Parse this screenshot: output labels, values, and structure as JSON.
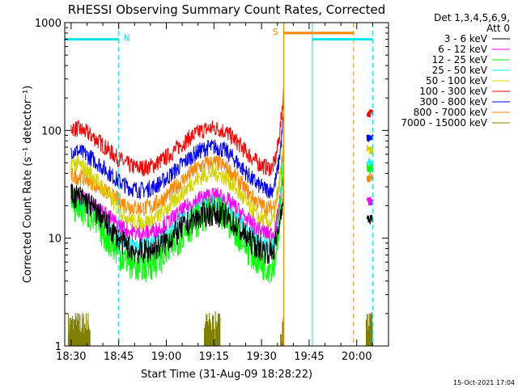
{
  "chart_data": {
    "type": "line",
    "title": "RHESSI Observing Summary Count Rates, Corrected",
    "xlabel": "Start Time (31-Aug-09 18:28:22)",
    "ylabel": "Corrected Count Rate (s⁻¹ detector⁻¹)",
    "yscale": "log",
    "ylim": [
      1,
      1000
    ],
    "xlim": [
      "18:28",
      "20:10"
    ],
    "x_ticks": [
      "18:30",
      "18:45",
      "19:00",
      "19:15",
      "19:30",
      "19:45",
      "20:00"
    ],
    "y_ticks": [
      "1",
      "10",
      "100",
      "1000"
    ],
    "legend_header": [
      "Det 1,3,4,5,6,9,",
      "Att 0"
    ],
    "legend_position": "right",
    "footer_date": "15-Oct-2021 17:04",
    "flags": [
      {
        "label": "N",
        "color": "#00e6e6",
        "start": "18:28",
        "end": "18:45",
        "level": 700
      },
      {
        "label": "S",
        "color": "#ff8800",
        "start": "19:37",
        "end": "19:59",
        "level": 800
      },
      {
        "label": "",
        "color": "#00e6e6",
        "start": "19:46",
        "end": "20:05",
        "level": 700
      }
    ],
    "markers": [
      {
        "time": "18:45",
        "color": "#00e6e6",
        "style": "dashed"
      },
      {
        "time": "19:37",
        "color": "#ff8800",
        "style": "solid"
      },
      {
        "time": "19:46",
        "color": "#00e6e6",
        "style": "solid"
      },
      {
        "time": "19:59",
        "color": "#ff8800",
        "style": "dashed"
      },
      {
        "time": "20:05",
        "color": "#00e6e6",
        "style": "dashed"
      }
    ],
    "series": [
      {
        "name": "3 - 6 keV",
        "color": "#000000",
        "start": 25,
        "trough": 7.5,
        "peak": 17,
        "spike": 15
      },
      {
        "name": "6 - 12 keV",
        "color": "#ff00ff",
        "start": 25,
        "trough": 11,
        "peak": 25,
        "spike": 22
      },
      {
        "name": "12 - 25 keV",
        "color": "#00ff00",
        "start": 20,
        "trough": 5.5,
        "peak": 17,
        "spike": 45
      },
      {
        "name": "25 - 50 keV",
        "color": "#00ffff",
        "start": 22,
        "trough": 8.5,
        "peak": 22,
        "spike": 50
      },
      {
        "name": "50 - 100 keV",
        "color": "#d4d400",
        "start": 50,
        "trough": 14,
        "peak": 40,
        "spike": 65
      },
      {
        "name": "100 - 300 keV",
        "color": "#ff0000",
        "start": 105,
        "trough": 45,
        "peak": 105,
        "spike": 145
      },
      {
        "name": "300 - 800 keV",
        "color": "#0000ff",
        "start": 65,
        "trough": 28,
        "peak": 70,
        "spike": 85
      },
      {
        "name": "800 - 7000 keV",
        "color": "#ff8800",
        "start": 38,
        "trough": 19,
        "peak": 50,
        "spike": 35
      },
      {
        "name": "7000 - 15000 keV",
        "color": "#808000",
        "start": 1,
        "trough": 1,
        "peak": 1,
        "spike": 1
      }
    ]
  }
}
